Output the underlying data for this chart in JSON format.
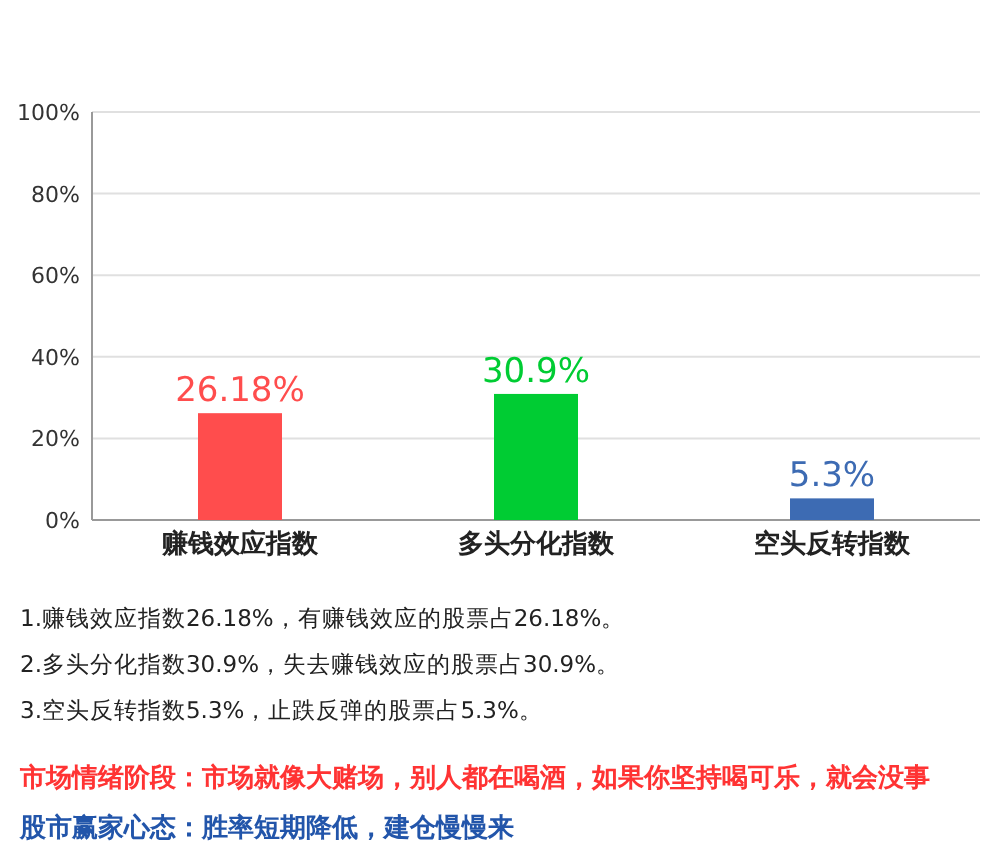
{
  "chart_data": {
    "type": "bar",
    "categories": [
      "赚钱效应指数",
      "多头分化指数",
      "空头反转指数"
    ],
    "values": [
      26.18,
      30.9,
      5.3
    ],
    "colors": [
      "#ff4d4d",
      "#00cc33",
      "#3d6bb3"
    ],
    "value_labels": [
      "26.18%",
      "30.9%",
      "5.3%"
    ],
    "ylim": [
      0,
      100
    ],
    "yticks": [
      {
        "value": 0,
        "label": "0%"
      },
      {
        "value": 20,
        "label": "20%"
      },
      {
        "value": 40,
        "label": "40%"
      },
      {
        "value": 60,
        "label": "60%"
      },
      {
        "value": 80,
        "label": "80%"
      },
      {
        "value": 100,
        "label": "100%"
      }
    ],
    "grid": "y",
    "annotations": [
      "1.赚钱效应指数26.18%，有赚钱效应的股票占26.18%。",
      "2.多头分化指数30.9%，失去赚钱效应的股票占30.9%。",
      "3.空头反转指数5.3%，止跌反弹的股票占5.3%。",
      "市场情绪阶段：市场就像大赌场，别人都在喝酒，如果你坚持喝可乐，就会没事",
      "股市赢家心态：胜率短期降低，建仓慢慢来"
    ]
  }
}
